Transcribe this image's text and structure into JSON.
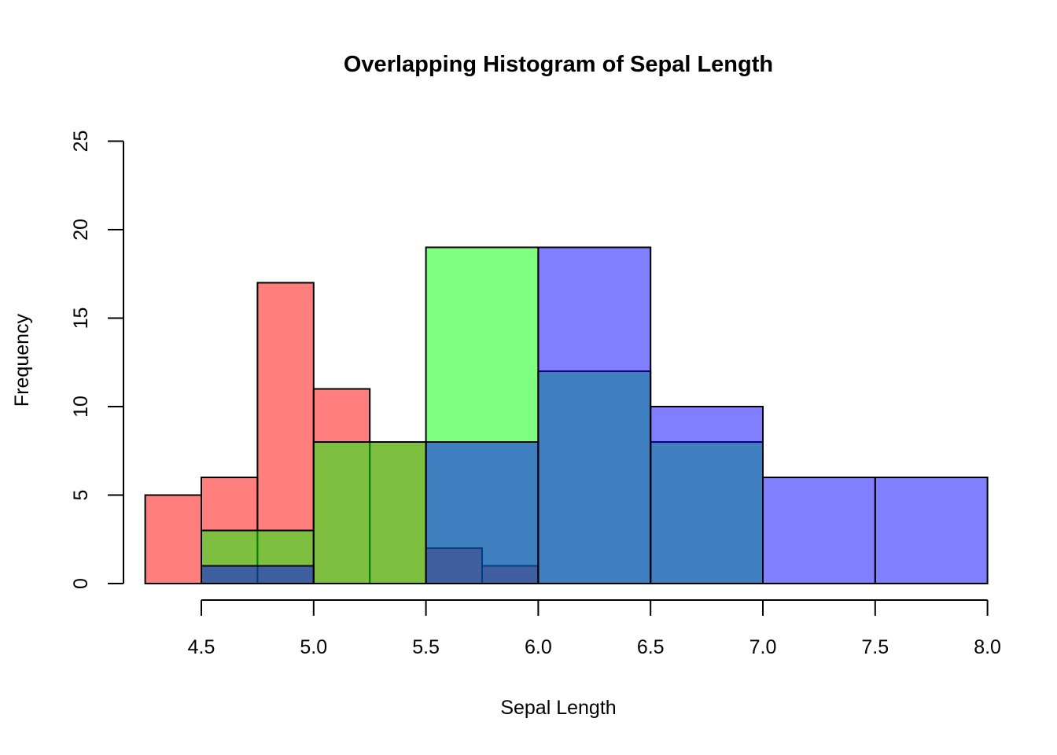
{
  "chart_data": {
    "type": "histogram",
    "title": "Overlapping Histogram of Sepal Length",
    "xlabel": "Sepal Length",
    "ylabel": "Frequency",
    "xlim": [
      4.25,
      8.0
    ],
    "ylim": [
      0,
      25
    ],
    "x_tick_values": [
      4.5,
      5.0,
      5.5,
      6.0,
      6.5,
      7.0,
      7.5,
      8.0
    ],
    "x_tick_labels": [
      "4.5",
      "5.0",
      "5.5",
      "6.0",
      "6.5",
      "7.0",
      "7.5",
      "8.0"
    ],
    "y_tick_values": [
      0,
      5,
      10,
      15,
      20,
      25
    ],
    "y_tick_labels": [
      "0",
      "5",
      "10",
      "15",
      "20",
      "25"
    ],
    "grid": false,
    "legend": "none",
    "background_color": "#FFFFFF",
    "axis_color": "#000000",
    "bar_border_color": "#000000",
    "fill_opacity": 0.5,
    "series": [
      {
        "name": "red-histogram",
        "fill": "#FF0000",
        "bin_start": 4.25,
        "bin_width": 0.25,
        "bin_edges": [
          4.25,
          4.5,
          4.75,
          5.0,
          5.25,
          5.5,
          5.75,
          6.0
        ],
        "counts": [
          5,
          6,
          17,
          11,
          8,
          2,
          1
        ]
      },
      {
        "name": "green-histogram",
        "fill": "#00FF00",
        "bin_start": 4.5,
        "bin_width": 0.5,
        "bin_edges": [
          4.5,
          5.0,
          5.5,
          6.0,
          6.5,
          7.0
        ],
        "counts": [
          3,
          8,
          19,
          12,
          8
        ]
      },
      {
        "name": "blue-histogram",
        "fill": "#0000FF",
        "bin_start": 4.5,
        "bin_width": 0.5,
        "bin_edges": [
          4.5,
          5.0,
          5.5,
          6.0,
          6.5,
          7.0,
          7.5,
          8.0
        ],
        "counts": [
          1,
          0,
          8,
          19,
          10,
          6,
          6
        ]
      }
    ]
  }
}
